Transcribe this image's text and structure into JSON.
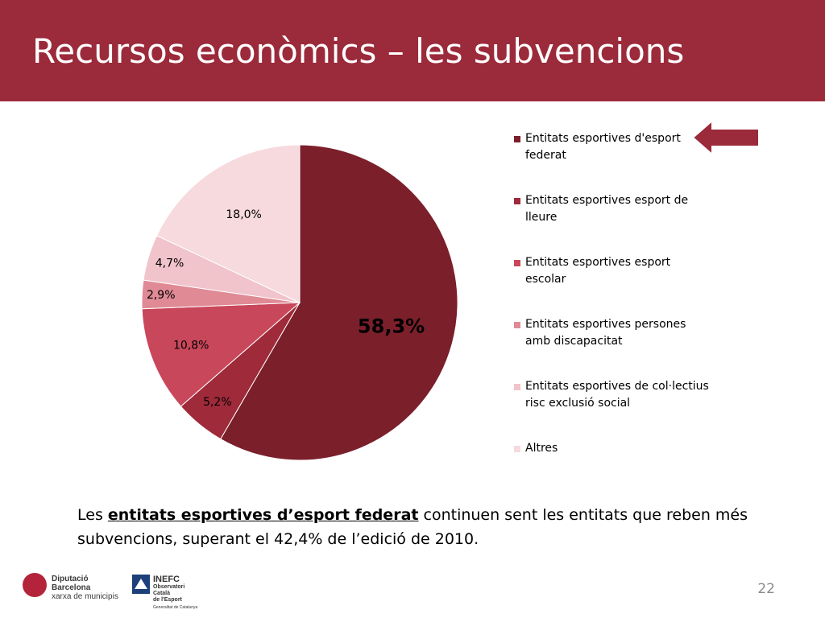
{
  "slide": {
    "title": "Recursos econòmics – les subvencions",
    "page_number": "22"
  },
  "chart_data": {
    "type": "pie",
    "categories": [
      "Entitats esportives d'esport federat",
      "Entitats esportives esport de lleure",
      "Entitats esportives esport escolar",
      "Entitats esportives persones amb discapacitat",
      "Entitats esportives de col·lectius risc exclusió social",
      "Altres"
    ],
    "values": [
      58.3,
      5.2,
      10.8,
      2.9,
      4.7,
      18.0
    ],
    "labels": [
      "58,3%",
      "5,2%",
      "10,8%",
      "2,9%",
      "4,7%",
      "18,0%"
    ],
    "colors": [
      "#7b1f2b",
      "#9e2a3a",
      "#c9475a",
      "#e08a96",
      "#f1c3ca",
      "#f6dadd"
    ],
    "legend_position": "right"
  },
  "caption": {
    "before": "Les ",
    "highlight": "entitats esportives d’esport federat",
    "after": " continuen sent les entitats que reben més subvencions, superant el 42,4% de l’edició de 2010."
  },
  "logos": {
    "diputacio_line1": "Diputació",
    "diputacio_line2": "Barcelona",
    "diputacio_line3": "xarxa de municipis",
    "inefc_name": "INEFC",
    "inefc_line1": "Observatori",
    "inefc_line2": "Català",
    "inefc_line3": "de l'Esport",
    "inefc_gen": "Generalitat de Catalunya"
  },
  "arrow_color": "#9b2a3a"
}
